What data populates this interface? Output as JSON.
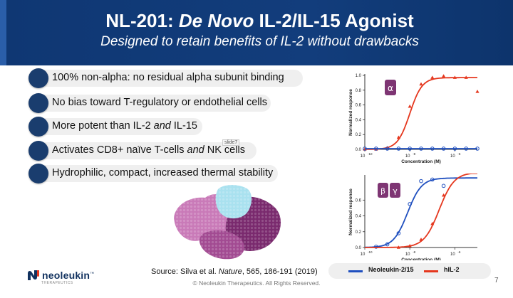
{
  "header": {
    "title_prefix": "NL-201: ",
    "title_italic": "De Novo",
    "title_suffix": " IL-2/IL-15 Agonist",
    "subtitle": "Designed to retain benefits of IL-2 without drawbacks"
  },
  "bullets": {
    "b1": "100% non-alpha: no residual alpha subunit binding",
    "b2": "No bias toward T-regulatory or endothelial cells",
    "b3_pre": "More potent than IL-2 ",
    "b3_em": "and",
    "b3_post": " IL-15",
    "b4_pre": "Activates CD8+ naïve T-cells ",
    "b4_em": "and",
    "b4_post": " NK cells",
    "b5": "Hydrophilic, compact, increased thermal stability"
  },
  "slide_tooltip": "slide7",
  "source": {
    "pre": "Source: Silva et al. ",
    "journal": "Nature",
    "post": ", 565, 186-191 (2019)"
  },
  "footer": {
    "copyright": "© Neoleukin Therapeutics. All Rights Reserved.",
    "page_number": "7",
    "logo_name": "neoleukin",
    "logo_tm": "™",
    "logo_sub": "THERAPEUTICS"
  },
  "colors": {
    "banner": "#123d7c",
    "blue_series": "#1f4fbf",
    "red_series": "#e5371e"
  },
  "legend": {
    "blue": "Neoleukin-2/15",
    "red": "hIL-2"
  },
  "chart_data": [
    {
      "type": "scatter",
      "title": "",
      "badge": "α",
      "xlabel": "Concentration (M)",
      "ylabel": "Normalized response",
      "x_scale": "log",
      "xlim": [
        -10,
        -5
      ],
      "ylim": [
        0,
        1.0
      ],
      "x_ticks": [
        -10,
        -8,
        -6
      ],
      "x_tick_labels": [
        "10",
        "10",
        "10"
      ],
      "x_tick_exps": [
        "-10",
        "-8",
        "-6"
      ],
      "y_ticks": [
        0,
        0.2,
        0.4,
        0.6,
        0.8,
        1.0
      ],
      "y_tick_labels": [
        "0.0",
        "0.2",
        "0.4",
        "0.6",
        "0.8",
        "1.0"
      ],
      "series": [
        {
          "name": "hIL-2",
          "color": "#e5371e",
          "marker": "triangle",
          "x": [
            -10,
            -9.5,
            -9,
            -8.5,
            -8,
            -7.5,
            -7,
            -6.5,
            -6,
            -5.5,
            -5
          ],
          "y": [
            0.0,
            0.0,
            0.02,
            0.16,
            0.58,
            0.88,
            0.97,
            0.99,
            0.97,
            0.97,
            0.78
          ],
          "fit_ec50": -8.0,
          "fit_top": 0.97,
          "fit_hill": 1.6
        },
        {
          "name": "Neoleukin-2/15",
          "color": "#1f4fbf",
          "marker": "circle",
          "x": [
            -10,
            -9.5,
            -9,
            -8.5,
            -8,
            -7.5,
            -7,
            -6.5,
            -6,
            -5.5,
            -5
          ],
          "y": [
            0.01,
            0.01,
            0.01,
            0.01,
            0.01,
            0.01,
            0.01,
            0.01,
            0.01,
            0.01,
            0.01
          ]
        }
      ]
    },
    {
      "type": "scatter",
      "title": "",
      "badges": [
        "β",
        "γ"
      ],
      "xlabel": "Concentration (M)",
      "ylabel": "Normalized response",
      "x_scale": "log",
      "xlim": [
        -10,
        -5
      ],
      "ylim": [
        0,
        0.9
      ],
      "x_ticks": [
        -10,
        -8,
        -6
      ],
      "x_tick_labels": [
        "10",
        "10",
        "10"
      ],
      "x_tick_exps": [
        "-10",
        "-8",
        "-6"
      ],
      "y_ticks": [
        0,
        0.2,
        0.4,
        0.6
      ],
      "y_tick_labels": [
        "0.0",
        "0.2",
        "0.4",
        "0.6"
      ],
      "series": [
        {
          "name": "Neoleukin-2/15",
          "color": "#1f4fbf",
          "marker": "circle",
          "x": [
            -9.5,
            -9,
            -8.5,
            -8,
            -7.5,
            -7,
            -6.5
          ],
          "y": [
            0.01,
            0.04,
            0.18,
            0.55,
            0.84,
            0.86,
            0.78
          ],
          "fit_ec50": -8.1,
          "fit_top": 0.88,
          "fit_hill": 1.4
        },
        {
          "name": "hIL-2",
          "color": "#e5371e",
          "marker": "triangle",
          "x": [
            -8.5,
            -8,
            -7.5,
            -7,
            -6.5
          ],
          "y": [
            0.0,
            0.02,
            0.1,
            0.3,
            0.66
          ],
          "fit_ec50": -6.7,
          "fit_top": 0.95,
          "fit_hill": 1.3
        }
      ]
    }
  ]
}
